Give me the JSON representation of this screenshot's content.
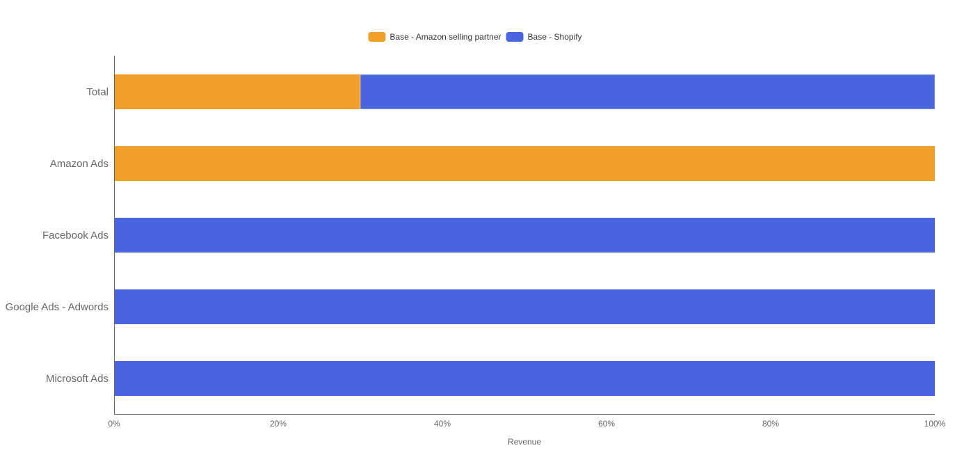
{
  "chart_data": {
    "type": "bar",
    "orientation": "horizontal",
    "stacked": true,
    "normalized": true,
    "categories": [
      "Total",
      "Amazon Ads",
      "Facebook Ads",
      "Google Ads - Adwords",
      "Microsoft Ads"
    ],
    "series": [
      {
        "name": "Base - Amazon selling partner",
        "color": "#f09f2b",
        "values": [
          30,
          100,
          0,
          0,
          0
        ]
      },
      {
        "name": "Base - Shopify",
        "color": "#4a66de",
        "values": [
          70,
          0,
          100,
          100,
          100
        ]
      }
    ],
    "xlabel": "Revenue",
    "ylabel": "",
    "xlim": [
      0,
      100
    ],
    "x_ticks": [
      0,
      20,
      40,
      60,
      80,
      100
    ],
    "x_tick_labels": [
      "0%",
      "20%",
      "40%",
      "60%",
      "80%",
      "100%"
    ],
    "grid": false,
    "legend_position": "top-center"
  }
}
